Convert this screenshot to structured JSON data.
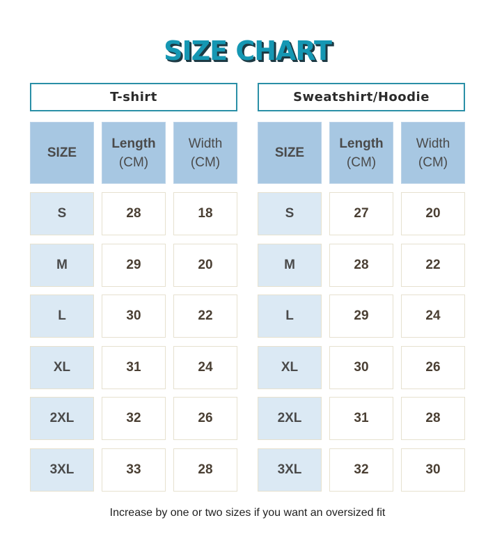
{
  "title": "SIZE CHART",
  "tables": [
    {
      "name": "T-shirt",
      "headers": [
        "SIZE",
        "Length",
        "(CM)",
        "Width",
        "(CM)"
      ],
      "rows": [
        {
          "size": "S",
          "length": "28",
          "width": "18"
        },
        {
          "size": "M",
          "length": "29",
          "width": "20"
        },
        {
          "size": "L",
          "length": "30",
          "width": "22"
        },
        {
          "size": "XL",
          "length": "31",
          "width": "24"
        },
        {
          "size": "2XL",
          "length": "32",
          "width": "26"
        },
        {
          "size": "3XL",
          "length": "33",
          "width": "28"
        }
      ]
    },
    {
      "name": "Sweatshirt/Hoodie",
      "headers": [
        "SIZE",
        "Length",
        "(CM)",
        "Width",
        "(CM)"
      ],
      "rows": [
        {
          "size": "S",
          "length": "27",
          "width": "20"
        },
        {
          "size": "M",
          "length": "28",
          "width": "22"
        },
        {
          "size": "L",
          "length": "29",
          "width": "24"
        },
        {
          "size": "XL",
          "length": "30",
          "width": "26"
        },
        {
          "size": "2XL",
          "length": "31",
          "width": "28"
        },
        {
          "size": "3XL",
          "length": "32",
          "width": "30"
        }
      ]
    }
  ],
  "footnote": "Increase by one or two sizes if you want an oversized fit",
  "colors": {
    "title": "#1597b3",
    "title_shadow": "#1d3a44",
    "header_border": "#2a8fa6",
    "column_header_bg": "#a7c7e2",
    "size_cell_bg": "#dbe9f4",
    "cell_border": "#e6e1cf"
  }
}
